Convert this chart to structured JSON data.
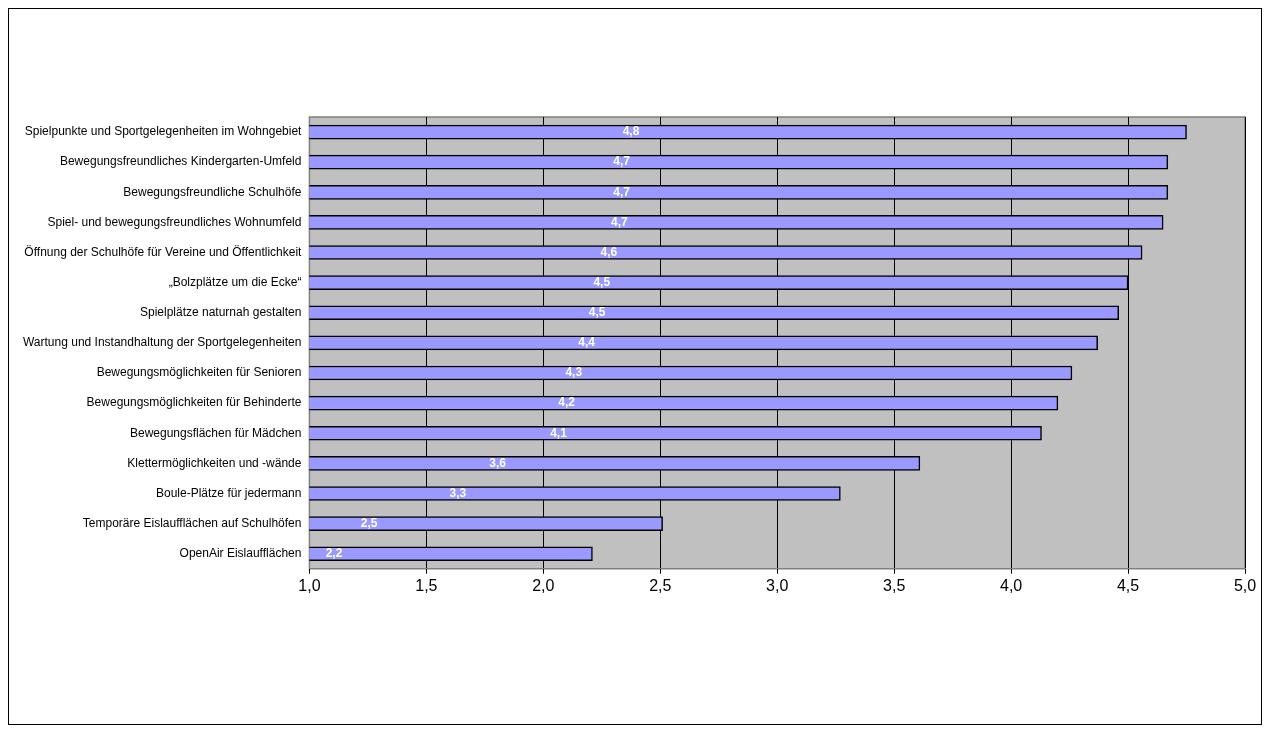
{
  "chart_data": {
    "type": "bar",
    "orientation": "horizontal",
    "categories": [
      "Spielpunkte und Sportgelegenheiten im Wohngebiet",
      "Bewegungsfreundliches Kindergarten-Umfeld",
      "Bewegungsfreundliche Schulhöfe",
      "Spiel- und bewegungsfreundliches Wohnumfeld",
      "Öffnung der Schulhöfe für Vereine und Öffentlichkeit",
      "„Bolzplätze um die Ecke“",
      "Spielplätze naturnah gestalten",
      "Wartung und Instandhaltung der Sportgelegenheiten",
      "Bewegungsmöglichkeiten für Senioren",
      "Bewegungsmöglichkeiten für Behinderte",
      "Bewegungsflächen für Mädchen",
      "Klettermöglichkeiten und -wände",
      "Boule-Plätze für jedermann",
      "Temporäre Eislaufflächen auf Schulhöfen",
      "OpenAir Eislaufflächen"
    ],
    "values": [
      4.75,
      4.67,
      4.67,
      4.65,
      4.56,
      4.5,
      4.46,
      4.37,
      4.26,
      4.2,
      4.13,
      3.61,
      3.27,
      2.51,
      2.21
    ],
    "value_labels": [
      "4,8",
      "4,7",
      "4,7",
      "4,7",
      "4,6",
      "4,5",
      "4,5",
      "4,4",
      "4,3",
      "4,2",
      "4,1",
      "3,6",
      "3,3",
      "2,5",
      "2,2"
    ],
    "color": "#9999ff",
    "xlim": [
      1,
      5
    ],
    "xticks": [
      {
        "value": 1,
        "label": "1,0"
      },
      {
        "value": 1.5,
        "label": "1,5"
      },
      {
        "value": 2,
        "label": "2,0"
      },
      {
        "value": 2.5,
        "label": "2,5"
      },
      {
        "value": 3,
        "label": "3,0"
      },
      {
        "value": 3.5,
        "label": "3,5"
      },
      {
        "value": 4,
        "label": "4,0"
      },
      {
        "value": 4.5,
        "label": "4,5"
      },
      {
        "value": 5,
        "label": "5,0"
      }
    ],
    "grid": "x"
  }
}
